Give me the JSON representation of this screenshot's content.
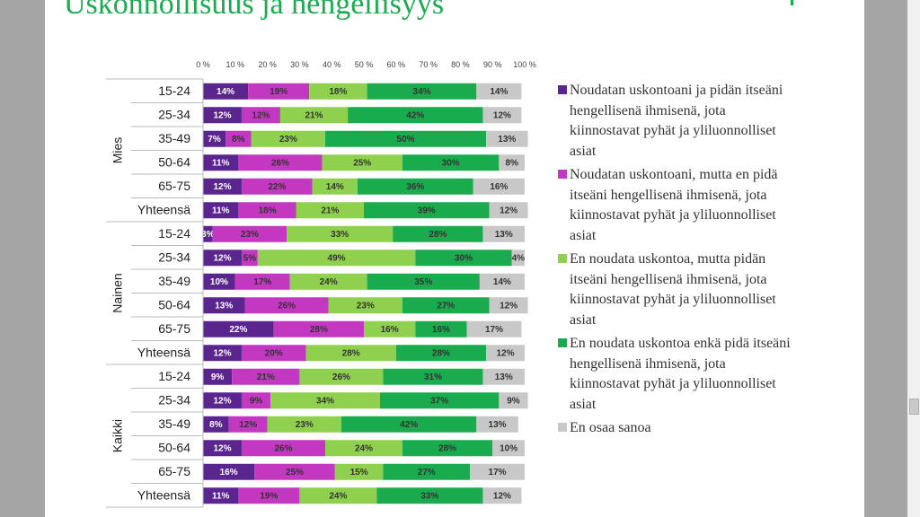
{
  "title": "Uskonnollisuus ja hengellisyys",
  "chart_data": {
    "type": "bar",
    "orientation": "horizontal",
    "stacked": true,
    "xlim": [
      0,
      100
    ],
    "x_ticks": [
      "0 %",
      "10 %",
      "20 %",
      "30 %",
      "40 %",
      "50 %",
      "60 %",
      "70 %",
      "80 %",
      "90 %",
      "100 %"
    ],
    "x_tick_values": [
      0,
      10,
      20,
      30,
      40,
      50,
      60,
      70,
      80,
      90,
      100
    ],
    "legend_position": "right",
    "groups": [
      {
        "name": "Mies",
        "rows": [
          {
            "label": "15-24",
            "values": [
              14,
              19,
              18,
              34,
              14
            ]
          },
          {
            "label": "25-34",
            "values": [
              12,
              12,
              21,
              42,
              12
            ]
          },
          {
            "label": "35-49",
            "values": [
              7,
              8,
              23,
              50,
              13
            ]
          },
          {
            "label": "50-64",
            "values": [
              11,
              26,
              25,
              30,
              8
            ]
          },
          {
            "label": "65-75",
            "values": [
              12,
              22,
              14,
              36,
              16
            ]
          },
          {
            "label": "Yhteensä",
            "values": [
              11,
              18,
              21,
              39,
              12
            ]
          }
        ]
      },
      {
        "name": "Nainen",
        "rows": [
          {
            "label": "15-24",
            "values": [
              3,
              23,
              33,
              28,
              13
            ]
          },
          {
            "label": "25-34",
            "values": [
              12,
              5,
              49,
              30,
              4
            ]
          },
          {
            "label": "35-49",
            "values": [
              10,
              17,
              24,
              35,
              14
            ]
          },
          {
            "label": "50-64",
            "values": [
              13,
              26,
              23,
              27,
              12
            ]
          },
          {
            "label": "65-75",
            "values": [
              22,
              28,
              16,
              16,
              17
            ]
          },
          {
            "label": "Yhteensä",
            "values": [
              12,
              20,
              28,
              28,
              12
            ]
          }
        ]
      },
      {
        "name": "Kaikki",
        "rows": [
          {
            "label": "15-24",
            "values": [
              9,
              21,
              26,
              31,
              13
            ]
          },
          {
            "label": "25-34",
            "values": [
              12,
              9,
              34,
              37,
              9
            ]
          },
          {
            "label": "35-49",
            "values": [
              8,
              12,
              23,
              42,
              13
            ]
          },
          {
            "label": "50-64",
            "values": [
              12,
              26,
              24,
              28,
              10
            ]
          },
          {
            "label": "65-75",
            "values": [
              16,
              25,
              15,
              27,
              17
            ]
          },
          {
            "label": "Yhteensä",
            "values": [
              11,
              19,
              24,
              33,
              12
            ]
          }
        ]
      }
    ],
    "series": [
      {
        "name": "Noudatan uskontoani ja pidän itseäni hengellisenä ihmisenä, jota kiinnostavat pyhät ja yliluonnolliset asiat",
        "color": "#5b2590",
        "label_color": "#ffffff"
      },
      {
        "name": "Noudatan uskontoani, mutta en pidä itseäni hengellisenä ihmisenä, jota kiinnostavat pyhät ja yliluonnolliset asiat",
        "color": "#c238c1",
        "label_color": "#333333"
      },
      {
        "name": "En noudata uskontoa, mutta pidän itseäni hengellisenä ihmisenä, jota kiinnostavat pyhät ja yliluonnolliset asiat",
        "color": "#8fd14f",
        "label_color": "#333333"
      },
      {
        "name": "En noudata uskontoa enkä pidä itseäni hengellisenä ihmisenä, jota kiinnostavat pyhät ja yliluonnolliset asiat",
        "color": "#1aab4f",
        "label_color": "#333333"
      },
      {
        "name": "En osaa sanoa",
        "color": "#c8c8c8",
        "label_color": "#333333"
      }
    ],
    "value_suffix": "%"
  }
}
